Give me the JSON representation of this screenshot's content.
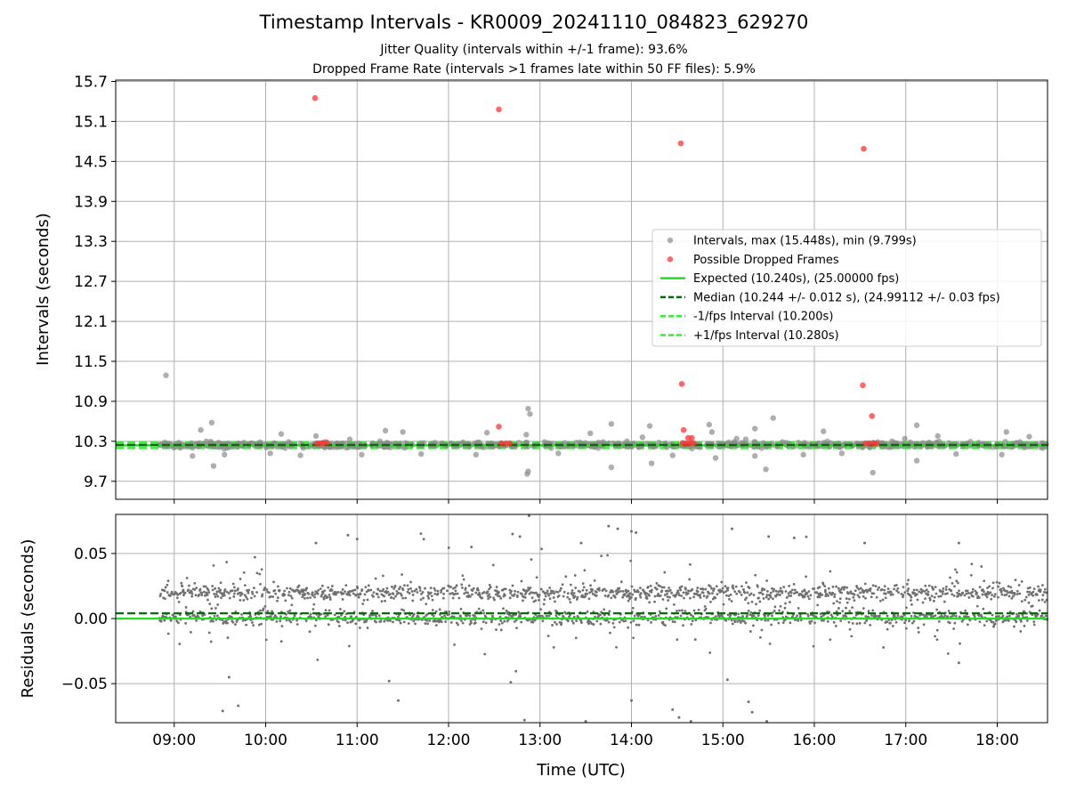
{
  "header": {
    "title": "Timestamp Intervals - KR0009_20241110_084823_629270",
    "subtitle1": "Jitter Quality (intervals within +/-1 frame): 93.6%",
    "subtitle2": "Dropped Frame Rate (intervals >1 frames late within 50 FF files): 5.9%"
  },
  "colors": {
    "intervals": "#8c8c8c",
    "dropped": "#ff3333",
    "expected": "#22dd22",
    "median": "#0a6a0a",
    "fps_bands": "#33ee33",
    "residual_points": "#707070",
    "grid": "#b0b0b0"
  },
  "chart_data": [
    {
      "type": "scatter",
      "panel": "top",
      "ylabel": "Intervals (seconds)",
      "xlabel": "",
      "grid": true,
      "x_range_hours": [
        8.36,
        18.55
      ],
      "ylim": [
        9.43,
        15.72
      ],
      "y_ticks": [
        9.7,
        10.3,
        10.9,
        11.5,
        12.1,
        12.7,
        13.3,
        13.9,
        14.5,
        15.1,
        15.7
      ],
      "y_tick_labels": [
        "9.7",
        "10.3",
        "10.9",
        "11.5",
        "12.1",
        "12.7",
        "13.3",
        "13.9",
        "14.5",
        "15.1",
        "15.7"
      ],
      "x_ticks_hours": [
        9,
        10,
        11,
        12,
        13,
        14,
        15,
        16,
        17,
        18
      ],
      "legend_position": "center-right",
      "legend": [
        "Intervals, max (15.448s), min (9.799s)",
        "Possible Dropped Frames",
        "Expected (10.240s), (25.00000 fps)",
        "Median (10.244 +/- 0.012 s), (24.99112 +/- 0.03 fps)",
        "-1/fps Interval (10.200s)",
        "+1/fps Interval (10.280s)"
      ],
      "reference_lines": {
        "expected": 10.24,
        "median": 10.244,
        "minus_one_fps": 10.2,
        "plus_one_fps": 10.28
      },
      "series": [
        {
          "name": "Possible Dropped Frames",
          "points": [
            {
              "x": 10.54,
              "y": 15.45
            },
            {
              "x": 12.55,
              "y": 15.28
            },
            {
              "x": 14.54,
              "y": 14.77
            },
            {
              "x": 16.54,
              "y": 14.69
            },
            {
              "x": 14.55,
              "y": 11.16
            },
            {
              "x": 16.53,
              "y": 11.14
            },
            {
              "x": 12.55,
              "y": 10.52
            },
            {
              "x": 16.63,
              "y": 10.68
            },
            {
              "x": 14.57,
              "y": 10.47
            },
            {
              "x": 14.66,
              "y": 10.35
            },
            {
              "x": 14.62,
              "y": 10.35
            },
            {
              "x": 10.67,
              "y": 10.28
            },
            {
              "x": 10.6,
              "y": 10.27
            },
            {
              "x": 10.56,
              "y": 10.27
            },
            {
              "x": 10.63,
              "y": 10.27
            },
            {
              "x": 12.58,
              "y": 10.27
            },
            {
              "x": 12.63,
              "y": 10.27
            },
            {
              "x": 12.67,
              "y": 10.27
            },
            {
              "x": 14.56,
              "y": 10.27
            },
            {
              "x": 14.6,
              "y": 10.27
            },
            {
              "x": 14.64,
              "y": 10.27
            },
            {
              "x": 14.68,
              "y": 10.27
            },
            {
              "x": 16.56,
              "y": 10.27
            },
            {
              "x": 16.6,
              "y": 10.27
            },
            {
              "x": 16.65,
              "y": 10.27
            },
            {
              "x": 16.68,
              "y": 10.27
            }
          ]
        },
        {
          "name": "Intervals, max (15.448s), min (9.799s)",
          "points": [
            {
              "x": 8.91,
              "y": 11.29
            },
            {
              "x": 12.87,
              "y": 10.79
            },
            {
              "x": 12.86,
              "y": 9.81
            },
            {
              "x": 12.87,
              "y": 9.85
            },
            {
              "x": 16.64,
              "y": 9.83
            },
            {
              "x": 15.47,
              "y": 9.88
            },
            {
              "x": 9.43,
              "y": 9.93
            },
            {
              "x": 13.78,
              "y": 9.91
            },
            {
              "x": 14.22,
              "y": 9.97
            },
            {
              "x": 17.12,
              "y": 10.01
            },
            {
              "x": 9.41,
              "y": 10.58
            },
            {
              "x": 13.78,
              "y": 10.56
            },
            {
              "x": 14.2,
              "y": 10.53
            },
            {
              "x": 15.55,
              "y": 10.65
            },
            {
              "x": 17.12,
              "y": 10.54
            },
            {
              "x": 12.42,
              "y": 10.43
            },
            {
              "x": 16.1,
              "y": 10.45
            },
            {
              "x": 15.35,
              "y": 10.49
            },
            {
              "x": 18.1,
              "y": 10.44
            },
            {
              "x": 12.89,
              "y": 10.71
            },
            {
              "x": 10.55,
              "y": 10.38
            },
            {
              "x": 11.31,
              "y": 10.46
            },
            {
              "x": 14.85,
              "y": 10.55
            },
            {
              "x": 9.29,
              "y": 10.47
            },
            {
              "x": 10.17,
              "y": 10.41
            },
            {
              "x": 11.5,
              "y": 10.44
            },
            {
              "x": 13.55,
              "y": 10.42
            },
            {
              "x": 17.35,
              "y": 10.38
            },
            {
              "x": 16.99,
              "y": 10.34
            },
            {
              "x": 18.35,
              "y": 10.37
            },
            {
              "x": 9.2,
              "y": 10.08
            },
            {
              "x": 9.55,
              "y": 10.1
            },
            {
              "x": 10.05,
              "y": 10.12
            },
            {
              "x": 10.38,
              "y": 10.09
            },
            {
              "x": 11.05,
              "y": 10.1
            },
            {
              "x": 11.7,
              "y": 10.11
            },
            {
              "x": 12.3,
              "y": 10.1
            },
            {
              "x": 13.2,
              "y": 10.12
            },
            {
              "x": 14.45,
              "y": 10.09
            },
            {
              "x": 14.92,
              "y": 10.05
            },
            {
              "x": 15.35,
              "y": 10.08
            },
            {
              "x": 15.88,
              "y": 10.1
            },
            {
              "x": 16.3,
              "y": 10.12
            },
            {
              "x": 17.55,
              "y": 10.11
            },
            {
              "x": 18.05,
              "y": 10.1
            },
            {
              "x": 9.05,
              "y": 10.28
            },
            {
              "x": 9.35,
              "y": 10.3
            },
            {
              "x": 9.72,
              "y": 10.26
            },
            {
              "x": 10.25,
              "y": 10.29
            },
            {
              "x": 10.85,
              "y": 10.27
            },
            {
              "x": 11.25,
              "y": 10.3
            },
            {
              "x": 11.85,
              "y": 10.28
            },
            {
              "x": 12.15,
              "y": 10.26
            },
            {
              "x": 13.05,
              "y": 10.29
            },
            {
              "x": 13.45,
              "y": 10.27
            },
            {
              "x": 13.95,
              "y": 10.3
            },
            {
              "x": 14.3,
              "y": 10.28
            },
            {
              "x": 15.05,
              "y": 10.26
            },
            {
              "x": 15.65,
              "y": 10.29
            },
            {
              "x": 16.05,
              "y": 10.27
            },
            {
              "x": 16.85,
              "y": 10.3
            },
            {
              "x": 17.25,
              "y": 10.28
            },
            {
              "x": 17.85,
              "y": 10.26
            },
            {
              "x": 18.25,
              "y": 10.29
            },
            {
              "x": 18.5,
              "y": 10.27
            },
            {
              "x": 8.85,
              "y": 10.24
            },
            {
              "x": 9.5,
              "y": 10.22
            },
            {
              "x": 10.7,
              "y": 10.21
            },
            {
              "x": 12.7,
              "y": 10.22
            },
            {
              "x": 14.75,
              "y": 10.21
            },
            {
              "x": 16.75,
              "y": 10.22
            },
            {
              "x": 17.7,
              "y": 10.23
            },
            {
              "x": 15.15,
              "y": 10.34
            },
            {
              "x": 14.12,
              "y": 10.36
            },
            {
              "x": 10.92,
              "y": 10.33
            },
            {
              "x": 12.85,
              "y": 10.4
            },
            {
              "x": 14.88,
              "y": 10.44
            },
            {
              "x": 15.25,
              "y": 10.33
            }
          ]
        }
      ]
    },
    {
      "type": "scatter",
      "panel": "bottom",
      "ylabel": "Residuals (seconds)",
      "xlabel": "Time (UTC)",
      "grid": true,
      "x_range_hours": [
        8.36,
        18.55
      ],
      "ylim": [
        -0.08,
        0.08
      ],
      "y_ticks": [
        -0.05,
        0.0,
        0.05
      ],
      "y_tick_labels": [
        "−0.05",
        "0.00",
        "0.05"
      ],
      "x_ticks_hours": [
        9,
        10,
        11,
        12,
        13,
        14,
        15,
        16,
        17,
        18
      ],
      "x_tick_labels": [
        "09:00",
        "10:00",
        "11:00",
        "12:00",
        "13:00",
        "14:00",
        "15:00",
        "16:00",
        "17:00",
        "18:00"
      ],
      "reference_lines": {
        "zero": 0.0,
        "median_offset": 0.004
      },
      "series_description": "residuals clustered near 0.000 and 0.020 s across 08:52-18:33",
      "outliers": [
        {
          "x": 10.9,
          "y": 0.064
        },
        {
          "x": 12.7,
          "y": 0.065
        },
        {
          "x": 12.78,
          "y": 0.063
        },
        {
          "x": 12.88,
          "y": 0.079
        },
        {
          "x": 13.45,
          "y": 0.058
        },
        {
          "x": 13.75,
          "y": 0.071
        },
        {
          "x": 13.85,
          "y": 0.069
        },
        {
          "x": 14.0,
          "y": 0.067
        },
        {
          "x": 14.05,
          "y": 0.066
        },
        {
          "x": 15.1,
          "y": 0.069
        },
        {
          "x": 15.5,
          "y": 0.063
        },
        {
          "x": 15.78,
          "y": 0.062
        },
        {
          "x": 17.58,
          "y": 0.058
        },
        {
          "x": 9.53,
          "y": -0.071
        },
        {
          "x": 9.7,
          "y": -0.067
        },
        {
          "x": 11.45,
          "y": -0.063
        },
        {
          "x": 12.68,
          "y": -0.049
        },
        {
          "x": 12.83,
          "y": -0.078
        },
        {
          "x": 13.5,
          "y": -0.079
        },
        {
          "x": 14.0,
          "y": -0.063
        },
        {
          "x": 14.45,
          "y": -0.07
        },
        {
          "x": 14.52,
          "y": -0.076
        },
        {
          "x": 14.65,
          "y": -0.079
        },
        {
          "x": 15.05,
          "y": -0.047
        },
        {
          "x": 15.28,
          "y": -0.064
        },
        {
          "x": 15.32,
          "y": -0.072
        },
        {
          "x": 15.48,
          "y": -0.079
        },
        {
          "x": 17.58,
          "y": -0.034
        },
        {
          "x": 10.55,
          "y": 0.058
        },
        {
          "x": 11.0,
          "y": 0.061
        },
        {
          "x": 12.25,
          "y": 0.055
        },
        {
          "x": 16.55,
          "y": 0.058
        },
        {
          "x": 9.6,
          "y": -0.045
        },
        {
          "x": 11.35,
          "y": -0.048
        }
      ]
    }
  ]
}
